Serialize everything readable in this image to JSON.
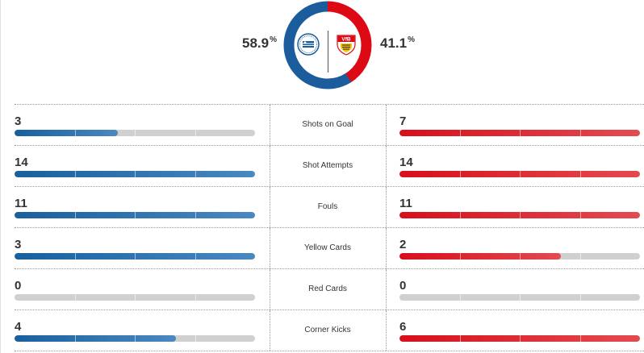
{
  "colors": {
    "home": "#1a5c9c",
    "away": "#dd0a16",
    "track": "#d0d0d0"
  },
  "possession": {
    "home_value": "58.9",
    "home_unit": "%",
    "away_value": "41.1",
    "away_unit": "%",
    "home_fraction": 0.589,
    "away_fraction": 0.411,
    "home_crest_icon": "arminia-bielefeld-crest-icon",
    "away_crest_icon": "vfb-stuttgart-crest-icon",
    "away_crest_text": "VfB"
  },
  "stats": [
    {
      "label": "Shots on Goal",
      "home": "3",
      "away": "7",
      "home_fraction": 0.43,
      "away_fraction": 1.0
    },
    {
      "label": "Shot Attempts",
      "home": "14",
      "away": "14",
      "home_fraction": 1.0,
      "away_fraction": 1.0
    },
    {
      "label": "Fouls",
      "home": "11",
      "away": "11",
      "home_fraction": 1.0,
      "away_fraction": 1.0
    },
    {
      "label": "Yellow Cards",
      "home": "3",
      "away": "2",
      "home_fraction": 1.0,
      "away_fraction": 0.67
    },
    {
      "label": "Red Cards",
      "home": "0",
      "away": "0",
      "home_fraction": 0,
      "away_fraction": 0
    },
    {
      "label": "Corner Kicks",
      "home": "4",
      "away": "6",
      "home_fraction": 0.67,
      "away_fraction": 1.0
    }
  ]
}
